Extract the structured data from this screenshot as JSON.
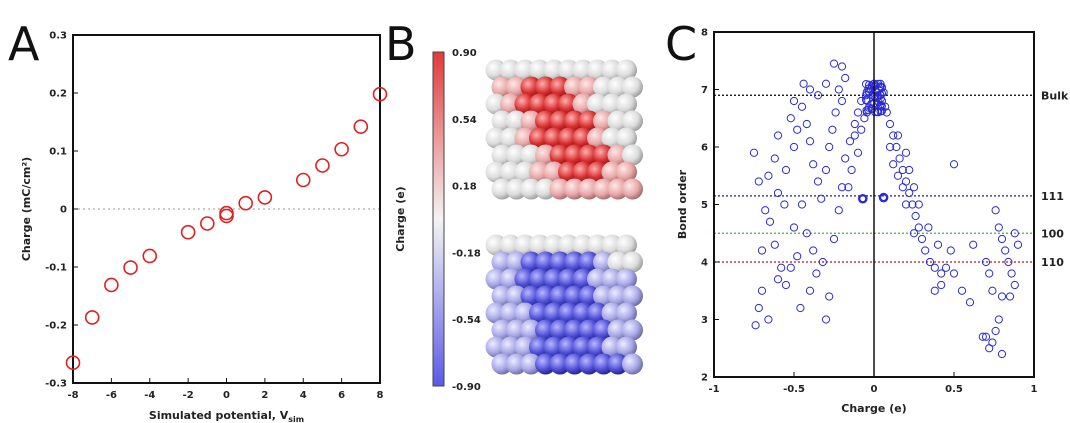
{
  "panels": {
    "a": "A",
    "b": "B",
    "c": "C"
  },
  "chart_data": [
    {
      "panel": "A",
      "type": "scatter",
      "title": "",
      "xlabel": "Simulated potential, V",
      "xlabel_sub": "sim",
      "ylabel": "Charge (mC/cm²)",
      "xlim": [
        -8,
        8
      ],
      "ylim": [
        -0.3,
        0.3
      ],
      "xticks": [
        -8,
        -6,
        -4,
        -2,
        0,
        2,
        4,
        6,
        8
      ],
      "yticks": [
        -0.3,
        -0.2,
        -0.1,
        0,
        0.1,
        0.2,
        0.3
      ],
      "grid": false,
      "zero_line": "dotted",
      "marker": "open-circle",
      "color": "#e02020",
      "x": [
        -8,
        -7,
        -6,
        -5,
        -4,
        -2,
        -1,
        0,
        0,
        1,
        2,
        4,
        5,
        6,
        7,
        8
      ],
      "y": [
        -0.265,
        -0.187,
        -0.131,
        -0.101,
        -0.081,
        -0.04,
        -0.025,
        -0.012,
        -0.007,
        0.01,
        0.02,
        0.05,
        0.075,
        0.103,
        0.142,
        0.198
      ]
    },
    {
      "panel": "B",
      "type": "heatmap",
      "colorbar_label": "Charge (e)",
      "colorbar_ticks": [
        "0.90",
        "0.54",
        "0.18",
        "-0.18",
        "-0.54",
        "-0.90"
      ],
      "range": [
        -0.9,
        0.9
      ],
      "colors": {
        "max": "#e03a3a",
        "mid": "#f4f4f4",
        "min": "#5a5ae6"
      }
    },
    {
      "panel": "C",
      "type": "scatter",
      "xlabel": "Charge (e)",
      "ylabel": "Bond order",
      "xlim": [
        -1,
        1
      ],
      "ylim": [
        2,
        8
      ],
      "xticks": [
        -1,
        -0.5,
        0,
        0.5,
        1
      ],
      "yticks": [
        2,
        3,
        4,
        5,
        6,
        7,
        8
      ],
      "marker": "open-circle",
      "color": "#2a2ad6",
      "reference_lines": [
        {
          "label": "Bulk",
          "y": 6.9,
          "color": "#000000"
        },
        {
          "label": "111",
          "y": 5.15,
          "color": "#1a1aa8"
        },
        {
          "label": "100",
          "y": 4.5,
          "color": "#3ab83a"
        },
        {
          "label": "110",
          "y": 4.0,
          "color": "#b01818"
        }
      ],
      "points": [
        [
          -0.7,
          4.2
        ],
        [
          -0.65,
          4.7
        ],
        [
          -0.6,
          5.2
        ],
        [
          -0.75,
          5.9
        ],
        [
          -0.72,
          5.4
        ],
        [
          -0.68,
          4.9
        ],
        [
          -0.62,
          4.3
        ],
        [
          -0.58,
          3.9
        ],
        [
          -0.55,
          3.6
        ],
        [
          -0.7,
          3.5
        ],
        [
          -0.72,
          3.2
        ],
        [
          -0.74,
          2.9
        ],
        [
          -0.66,
          3.0
        ],
        [
          -0.6,
          3.7
        ],
        [
          -0.52,
          3.9
        ],
        [
          -0.48,
          4.1
        ],
        [
          -0.5,
          4.6
        ],
        [
          -0.45,
          5.0
        ],
        [
          -0.42,
          4.5
        ],
        [
          -0.38,
          4.2
        ],
        [
          -0.36,
          3.8
        ],
        [
          -0.4,
          3.5
        ],
        [
          -0.46,
          3.2
        ],
        [
          -0.3,
          3.0
        ],
        [
          -0.28,
          3.4
        ],
        [
          -0.32,
          4.0
        ],
        [
          -0.25,
          4.4
        ],
        [
          -0.22,
          4.9
        ],
        [
          -0.2,
          5.3
        ],
        [
          -0.18,
          5.8
        ],
        [
          -0.15,
          6.1
        ],
        [
          -0.12,
          6.4
        ],
        [
          -0.1,
          6.6
        ],
        [
          -0.08,
          6.8
        ],
        [
          -0.05,
          6.9
        ],
        [
          -0.03,
          6.95
        ],
        [
          -0.55,
          5.6
        ],
        [
          -0.5,
          6.0
        ],
        [
          -0.48,
          6.3
        ],
        [
          -0.52,
          6.5
        ],
        [
          -0.45,
          6.7
        ],
        [
          -0.42,
          6.4
        ],
        [
          -0.4,
          6.1
        ],
        [
          -0.38,
          5.7
        ],
        [
          -0.35,
          5.4
        ],
        [
          -0.33,
          5.1
        ],
        [
          -0.3,
          5.6
        ],
        [
          -0.28,
          6.0
        ],
        [
          -0.26,
          6.3
        ],
        [
          -0.24,
          6.6
        ],
        [
          -0.2,
          6.8
        ],
        [
          -0.22,
          7.0
        ],
        [
          -0.18,
          7.2
        ],
        [
          -0.2,
          7.4
        ],
        [
          -0.25,
          7.45
        ],
        [
          -0.3,
          7.1
        ],
        [
          -0.35,
          6.9
        ],
        [
          -0.4,
          7.0
        ],
        [
          -0.44,
          7.1
        ],
        [
          -0.5,
          6.8
        ],
        [
          -0.6,
          6.2
        ],
        [
          -0.62,
          5.8
        ],
        [
          -0.66,
          5.5
        ],
        [
          -0.56,
          5.0
        ],
        [
          -0.1,
          5.9
        ],
        [
          -0.12,
          6.2
        ],
        [
          -0.14,
          5.6
        ],
        [
          -0.16,
          5.3
        ],
        [
          -0.08,
          6.3
        ],
        [
          -0.06,
          6.5
        ],
        [
          0.01,
          6.85
        ],
        [
          0.02,
          6.95
        ],
        [
          0.03,
          7.0
        ],
        [
          0.04,
          6.9
        ],
        [
          0.05,
          6.8
        ],
        [
          -0.01,
          6.9
        ],
        [
          0.0,
          7.05
        ],
        [
          0.02,
          6.75
        ],
        [
          0.04,
          7.05
        ],
        [
          0.06,
          6.95
        ],
        [
          0.07,
          6.7
        ],
        [
          0.08,
          6.6
        ],
        [
          0.1,
          6.4
        ],
        [
          0.12,
          6.2
        ],
        [
          0.14,
          6.0
        ],
        [
          0.16,
          5.8
        ],
        [
          0.18,
          5.6
        ],
        [
          0.2,
          5.4
        ],
        [
          0.22,
          5.2
        ],
        [
          0.24,
          5.0
        ],
        [
          0.26,
          4.8
        ],
        [
          0.28,
          4.6
        ],
        [
          0.3,
          4.4
        ],
        [
          0.25,
          4.5
        ],
        [
          0.32,
          4.2
        ],
        [
          0.35,
          4.0
        ],
        [
          0.38,
          3.9
        ],
        [
          0.42,
          3.8
        ],
        [
          0.45,
          3.9
        ],
        [
          0.5,
          3.8
        ],
        [
          0.48,
          4.2
        ],
        [
          0.4,
          4.3
        ],
        [
          0.34,
          4.6
        ],
        [
          0.2,
          5.0
        ],
        [
          0.18,
          5.3
        ],
        [
          0.15,
          5.5
        ],
        [
          0.12,
          5.7
        ],
        [
          0.1,
          6.0
        ],
        [
          0.15,
          6.2
        ],
        [
          0.2,
          5.9
        ],
        [
          0.22,
          5.6
        ],
        [
          0.25,
          5.3
        ],
        [
          0.28,
          5.0
        ],
        [
          0.5,
          5.7
        ],
        [
          0.55,
          3.5
        ],
        [
          0.6,
          3.3
        ],
        [
          0.38,
          3.5
        ],
        [
          0.42,
          3.6
        ],
        [
          0.62,
          4.3
        ],
        [
          0.7,
          4.0
        ],
        [
          0.72,
          3.8
        ],
        [
          0.74,
          3.5
        ],
        [
          0.76,
          4.9
        ],
        [
          0.78,
          4.6
        ],
        [
          0.8,
          4.4
        ],
        [
          0.82,
          4.2
        ],
        [
          0.84,
          4.0
        ],
        [
          0.86,
          3.8
        ],
        [
          0.88,
          3.6
        ],
        [
          0.8,
          3.4
        ],
        [
          0.78,
          3.0
        ],
        [
          0.76,
          2.8
        ],
        [
          0.74,
          2.6
        ],
        [
          0.72,
          2.5
        ],
        [
          0.7,
          2.7
        ],
        [
          0.68,
          2.7
        ],
        [
          0.8,
          2.4
        ],
        [
          0.85,
          3.4
        ],
        [
          0.9,
          4.3
        ],
        [
          0.88,
          4.5
        ]
      ],
      "bold_points": [
        [
          -0.07,
          5.1
        ],
        [
          0.06,
          5.12
        ]
      ]
    }
  ]
}
